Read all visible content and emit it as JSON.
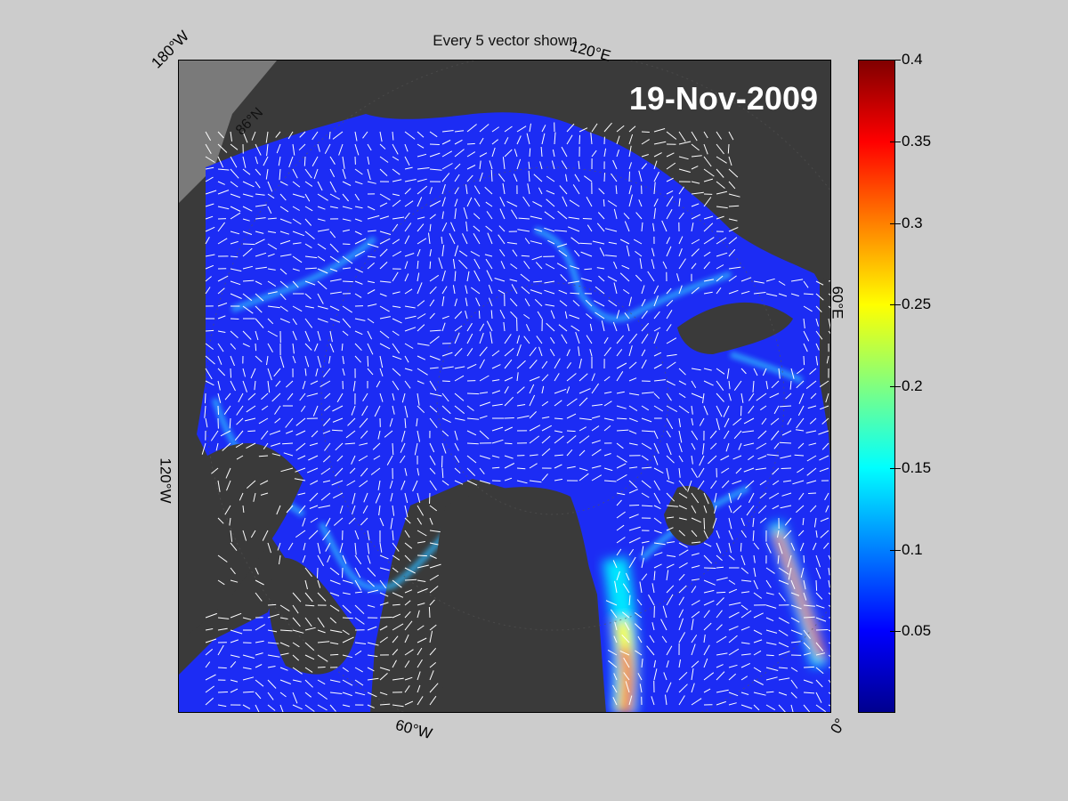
{
  "title": "Every 5 vector shown",
  "date": "19-Nov-2009",
  "lon_labels": {
    "w180": "180°W",
    "e120": "120°E",
    "e60": "60°E",
    "w120": "120°W",
    "w60": "60°W",
    "zero": "0°"
  },
  "lat_label": "86°N",
  "colorbar": {
    "min": 0,
    "max": 0.4,
    "ticks": [
      "0.4",
      "0.35",
      "0.3",
      "0.25",
      "0.2",
      "0.15",
      "0.1",
      "0.05"
    ],
    "tick_values": [
      0.4,
      0.35,
      0.3,
      0.25,
      0.2,
      0.15,
      0.1,
      0.05
    ],
    "colormap": "jet"
  },
  "colors": {
    "background": "#cccccc",
    "land": "#3a3a3a",
    "ice_low": "#1a2aff",
    "vectors": "#ffffff"
  }
}
